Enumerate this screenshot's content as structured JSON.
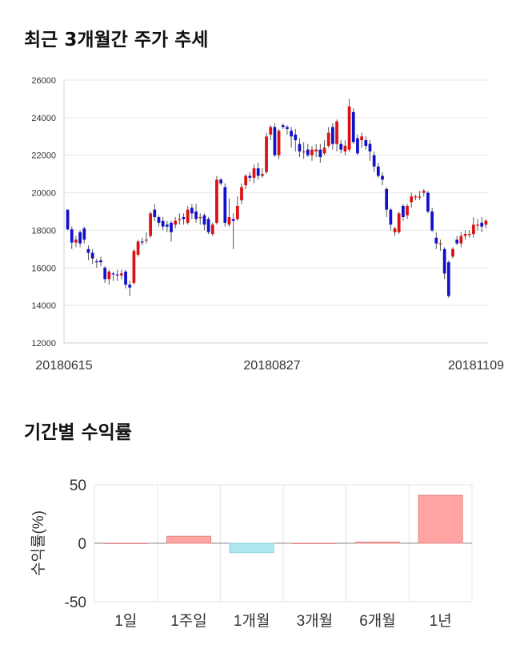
{
  "section1": {
    "title": "최근 3개월간 주가 추세"
  },
  "section2": {
    "title": "기간별 수익률"
  },
  "chart_data": [
    {
      "type": "candlestick",
      "title": "최근 3개월간 주가 추세",
      "ylim": [
        12000,
        26000
      ],
      "yticks": [
        "26000",
        "24000",
        "22000",
        "20000",
        "18000",
        "16000",
        "14000",
        "12000"
      ],
      "xticks": [
        "20180615",
        "20180827",
        "20181109"
      ],
      "grid": true,
      "colors": {
        "up": "#dd1111",
        "down": "#1111cc",
        "wick": "#555555"
      },
      "candles": [
        [
          19100,
          18050,
          19100,
          18000
        ],
        [
          18050,
          17350,
          18200,
          17000
        ],
        [
          17350,
          17500,
          17700,
          17100
        ],
        [
          17900,
          17300,
          18000,
          17100
        ],
        [
          18100,
          17500,
          18200,
          17300
        ],
        [
          17000,
          16800,
          17200,
          16400
        ],
        [
          16800,
          16500,
          17000,
          16200
        ],
        [
          16350,
          16300,
          16500,
          16000
        ],
        [
          16400,
          16300,
          16600,
          16100
        ],
        [
          16000,
          15400,
          16100,
          15200
        ],
        [
          15400,
          15800,
          15900,
          15100
        ],
        [
          15700,
          15650,
          15800,
          15300
        ],
        [
          15650,
          15600,
          15900,
          15300
        ],
        [
          15600,
          15700,
          15900,
          15400
        ],
        [
          15800,
          15100,
          15900,
          14900
        ],
        [
          15100,
          14950,
          15300,
          14500
        ],
        [
          15200,
          16900,
          17000,
          15100
        ],
        [
          16700,
          17400,
          17500,
          16600
        ],
        [
          17400,
          17350,
          17600,
          17200
        ],
        [
          17500,
          17500,
          17900,
          17300
        ],
        [
          17700,
          18900,
          19000,
          17600
        ],
        [
          19100,
          18700,
          19400,
          18500
        ],
        [
          18700,
          18400,
          18800,
          18200
        ],
        [
          18500,
          18200,
          18700,
          18000
        ],
        [
          18300,
          18200,
          18500,
          17900
        ],
        [
          18400,
          17900,
          18500,
          17400
        ],
        [
          18300,
          18500,
          18700,
          18100
        ],
        [
          18600,
          18600,
          18900,
          18300
        ],
        [
          18700,
          18600,
          18900,
          18300
        ],
        [
          18400,
          19100,
          19300,
          18300
        ],
        [
          19200,
          18900,
          19400,
          18600
        ],
        [
          19000,
          18600,
          19400,
          18400
        ],
        [
          18700,
          18700,
          18900,
          18300
        ],
        [
          18800,
          18300,
          18900,
          18000
        ],
        [
          18600,
          17900,
          18700,
          17800
        ],
        [
          17800,
          18300,
          18400,
          17700
        ],
        [
          18400,
          20700,
          20900,
          18300
        ],
        [
          20700,
          20500,
          20800,
          20400
        ],
        [
          20300,
          18400,
          20500,
          18200
        ],
        [
          18300,
          18700,
          19700,
          18200
        ],
        [
          18600,
          18500,
          18900,
          17000
        ],
        [
          18600,
          19300,
          19800,
          18500
        ],
        [
          19600,
          20300,
          20500,
          19400
        ],
        [
          20400,
          20900,
          21000,
          20200
        ],
        [
          20900,
          20800,
          21100,
          20600
        ],
        [
          20800,
          21300,
          21500,
          20500
        ],
        [
          21300,
          20900,
          21600,
          20700
        ],
        [
          20900,
          21000,
          21300,
          20800
        ],
        [
          21100,
          23000,
          23200,
          21000
        ],
        [
          23100,
          23500,
          23600,
          22800
        ],
        [
          23500,
          22000,
          23700,
          21900
        ],
        [
          22000,
          23300,
          23400,
          21800
        ],
        [
          23600,
          23500,
          23700,
          23400
        ],
        [
          23500,
          23400,
          23600,
          23100
        ],
        [
          23300,
          23000,
          23500,
          22400
        ],
        [
          23100,
          22800,
          23400,
          22200
        ],
        [
          22600,
          22200,
          22900,
          21900
        ],
        [
          22200,
          22200,
          22700,
          21800
        ],
        [
          22300,
          22000,
          22600,
          21900
        ],
        [
          22000,
          22300,
          22500,
          21700
        ],
        [
          22200,
          22300,
          22600,
          21900
        ],
        [
          22300,
          21900,
          22600,
          21600
        ],
        [
          22100,
          22400,
          22800,
          22000
        ],
        [
          22500,
          23200,
          23500,
          22400
        ],
        [
          23500,
          22600,
          23700,
          22300
        ],
        [
          22600,
          23800,
          23900,
          22200
        ],
        [
          22600,
          22300,
          22800,
          22100
        ],
        [
          22200,
          22500,
          22800,
          22000
        ],
        [
          22300,
          24600,
          25000,
          22200
        ],
        [
          24300,
          22700,
          24500,
          22600
        ],
        [
          22900,
          22100,
          23100,
          22000
        ],
        [
          22800,
          23000,
          23200,
          22400
        ],
        [
          22800,
          22500,
          23000,
          22300
        ],
        [
          22600,
          22200,
          22800,
          21700
        ],
        [
          22000,
          21400,
          22200,
          21100
        ],
        [
          21400,
          20900,
          21600,
          20800
        ],
        [
          20900,
          20700,
          21100,
          20400
        ],
        [
          20200,
          19100,
          20300,
          18700
        ],
        [
          19100,
          18300,
          19200,
          18000
        ],
        [
          17900,
          18100,
          18200,
          17700
        ],
        [
          17900,
          18900,
          19000,
          17800
        ],
        [
          19300,
          18700,
          19400,
          18500
        ],
        [
          18800,
          19300,
          19400,
          18600
        ],
        [
          19500,
          19800,
          20000,
          19200
        ],
        [
          19800,
          19800,
          19900,
          19600
        ],
        [
          19800,
          19800,
          20100,
          19600
        ],
        [
          20000,
          20100,
          20200,
          19800
        ],
        [
          20000,
          19000,
          20100,
          18900
        ],
        [
          19000,
          18000,
          19200,
          17900
        ],
        [
          17600,
          17300,
          17900,
          17000
        ],
        [
          17300,
          17300,
          17500,
          16900
        ],
        [
          17000,
          15700,
          17100,
          15400
        ],
        [
          16300,
          14500,
          16400,
          14400
        ],
        [
          16600,
          17000,
          17100,
          16500
        ],
        [
          17500,
          17300,
          17700,
          17200
        ],
        [
          17300,
          17700,
          17900,
          17100
        ],
        [
          17700,
          17800,
          18000,
          17500
        ],
        [
          17800,
          17800,
          18000,
          17600
        ],
        [
          17800,
          18300,
          18700,
          17600
        ],
        [
          18300,
          18300,
          18600,
          18000
        ],
        [
          18400,
          18200,
          18700,
          17900
        ],
        [
          18300,
          18500,
          18600,
          18100
        ]
      ]
    },
    {
      "type": "bar",
      "title": "기간별 수익률",
      "ylabel": "수익률(%)",
      "ylim": [
        -50,
        50
      ],
      "yticks": [
        "50",
        "0",
        "-50"
      ],
      "categories": [
        "1일",
        "1주일",
        "1개월",
        "3개월",
        "6개월",
        "1년"
      ],
      "values": [
        0,
        6,
        -8,
        0,
        1,
        41
      ],
      "colors": {
        "positive": "#ffa3a3",
        "negative": "#aee7f0"
      },
      "grid": true
    }
  ]
}
